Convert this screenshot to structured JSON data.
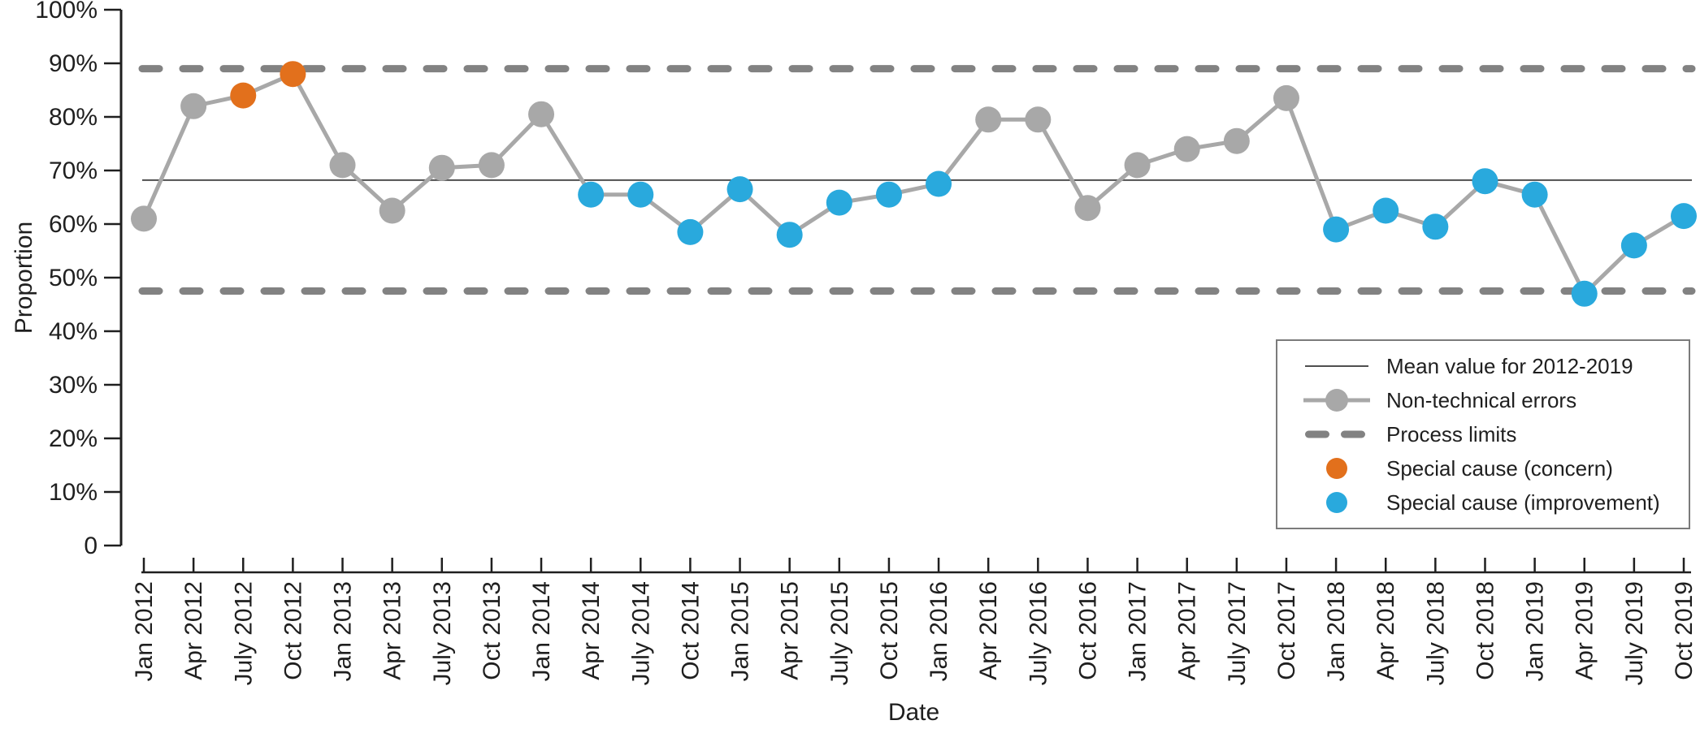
{
  "chart_data": {
    "type": "line",
    "title": "",
    "xlabel": "Date",
    "ylabel": "Proportion",
    "ylim": [
      0,
      100
    ],
    "grid": false,
    "legend_position": "bottom-right",
    "categories": [
      "Jan 2012",
      "Apr 2012",
      "July 2012",
      "Oct 2012",
      "Jan 2013",
      "Apr 2013",
      "July 2013",
      "Oct 2013",
      "Jan 2014",
      "Apr 2014",
      "July 2014",
      "Oct 2014",
      "Jan 2015",
      "Apr 2015",
      "July 2015",
      "Oct 2015",
      "Jan 2016",
      "Apr 2016",
      "July 2016",
      "Oct 2016",
      "Jan 2017",
      "Apr 2017",
      "July 2017",
      "Oct 2017",
      "Jan 2018",
      "Apr 2018",
      "July 2018",
      "Oct 2018",
      "Jan 2019",
      "Apr 2019",
      "July 2019",
      "Oct 2019"
    ],
    "series": [
      {
        "name": "Non-technical errors",
        "values": [
          61,
          82,
          84,
          88,
          71,
          62.5,
          70.5,
          71,
          80.5,
          65.5,
          65.5,
          58.5,
          66.5,
          58,
          64,
          65.5,
          67.5,
          79.5,
          79.5,
          63,
          71,
          74,
          75.5,
          83.5,
          59,
          62.5,
          59.5,
          68,
          65.5,
          47,
          56,
          61.5
        ]
      }
    ],
    "point_types": [
      "normal",
      "normal",
      "concern",
      "concern",
      "normal",
      "normal",
      "normal",
      "normal",
      "normal",
      "improvement",
      "improvement",
      "improvement",
      "improvement",
      "improvement",
      "improvement",
      "improvement",
      "improvement",
      "normal",
      "normal",
      "normal",
      "normal",
      "normal",
      "normal",
      "normal",
      "improvement",
      "improvement",
      "improvement",
      "improvement",
      "improvement",
      "improvement",
      "improvement",
      "improvement"
    ],
    "yticks": [
      {
        "v": 100,
        "label": "100%"
      },
      {
        "v": 90,
        "label": "90%"
      },
      {
        "v": 80,
        "label": "80%"
      },
      {
        "v": 70,
        "label": "70%"
      },
      {
        "v": 60,
        "label": "60%"
      },
      {
        "v": 50,
        "label": "50%"
      },
      {
        "v": 40,
        "label": "40%"
      },
      {
        "v": 30,
        "label": "30%"
      },
      {
        "v": 20,
        "label": "20%"
      },
      {
        "v": 10,
        "label": "10%"
      },
      {
        "v": 0,
        "label": "0"
      }
    ],
    "reference_lines": {
      "mean": {
        "label": "Mean value for 2012-2019",
        "value": 68.2
      },
      "upper_limit": {
        "label": "Process limits",
        "value": 89
      },
      "lower_limit": {
        "label": "Process limits",
        "value": 47.5
      }
    }
  },
  "legend": {
    "items": [
      {
        "label": "Mean value for 2012-2019",
        "swatch": "thin-line"
      },
      {
        "label": "Non-technical errors",
        "swatch": "line-with-dot"
      },
      {
        "label": "Process limits",
        "swatch": "dashed-line"
      },
      {
        "label": "Special cause (concern)",
        "swatch": "dot-concern"
      },
      {
        "label": "Special cause (improvement)",
        "swatch": "dot-improvement"
      }
    ]
  },
  "colors": {
    "normal_point": "#a8a8a8",
    "line": "#a8a8a8",
    "concern_point": "#e2701c",
    "improvement_point": "#29a9dd",
    "process_limit": "#828282",
    "mean_line": "#4f4f4f",
    "axis": "#1f1f1f"
  }
}
